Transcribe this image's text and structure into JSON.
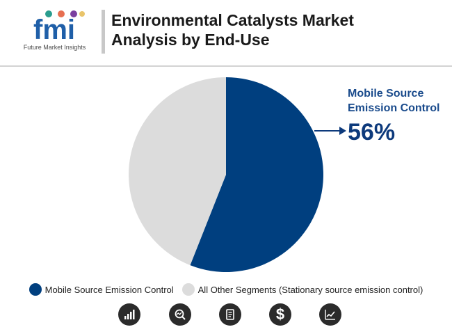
{
  "header": {
    "title_line1": "Environmental Catalysts Market",
    "title_line2": "Analysis by End-Use",
    "logo_letters": "fmi",
    "logo_subtitle": "Future Market Insights"
  },
  "colors": {
    "mobile": "#003f7f",
    "other": "#dcdcdc",
    "callout": "#0d3a7c"
  },
  "chart_data": {
    "type": "pie",
    "title": "Environmental Catalysts Market Analysis by End-Use",
    "series": [
      {
        "name": "Mobile Source Emission Control",
        "value": 56,
        "color": "#003f7f"
      },
      {
        "name": "All Other Segments (Stationary source emission control)",
        "value": 44,
        "color": "#dcdcdc"
      }
    ],
    "callout": {
      "label_line1": "Mobile Source",
      "label_line2": "Emission Control",
      "value_text": "56%"
    },
    "legend_placement": "bottom"
  },
  "legend": [
    {
      "label": "Mobile Source Emission Control",
      "color": "#003f7f"
    },
    {
      "label": "All Other Segments (Stationary source emission control)",
      "color": "#dcdcdc"
    }
  ],
  "footer_icons": [
    "bar-chart-icon",
    "magnifier-chart-icon",
    "document-icon",
    "dollar-icon",
    "trend-chart-icon"
  ]
}
